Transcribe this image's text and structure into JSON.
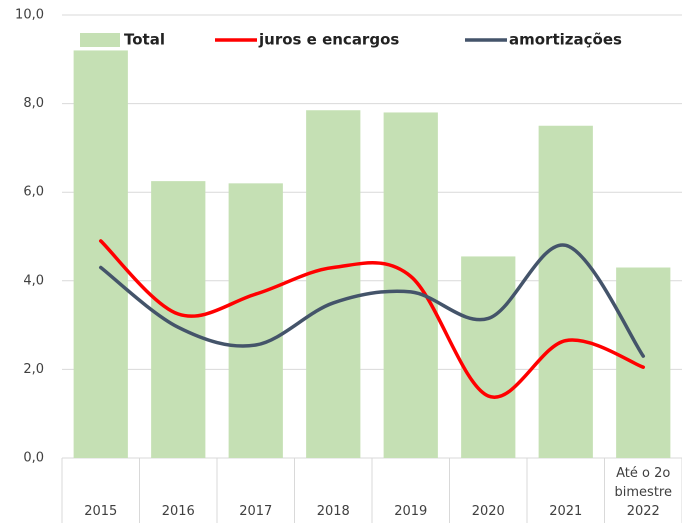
{
  "chart_data": {
    "type": "bar",
    "categories": [
      "2015",
      "2016",
      "2017",
      "2018",
      "2019",
      "2020",
      "2021",
      "Até o 2o bimestre 2022"
    ],
    "series": [
      {
        "name": "Total",
        "type": "bar",
        "color": "#c5e0b4",
        "values": [
          9.2,
          6.25,
          6.2,
          7.85,
          7.8,
          4.55,
          7.5,
          4.3
        ]
      },
      {
        "name": "juros e encargos",
        "type": "line",
        "color": "#ff0000",
        "values": [
          4.9,
          3.25,
          3.7,
          4.3,
          4.1,
          1.4,
          2.65,
          2.05
        ]
      },
      {
        "name": "amortizações",
        "type": "line",
        "color": "#44546a",
        "values": [
          4.3,
          2.95,
          2.55,
          3.5,
          3.75,
          3.15,
          4.8,
          2.3
        ]
      }
    ],
    "ylim": [
      0,
      10
    ],
    "yticks": [
      {
        "value": 0,
        "label": "0,0"
      },
      {
        "value": 2,
        "label": "2,0"
      },
      {
        "value": 4,
        "label": "4,0"
      },
      {
        "value": 6,
        "label": "6,0"
      },
      {
        "value": 8,
        "label": "8,0"
      },
      {
        "value": 10,
        "label": "10,0"
      }
    ],
    "grid": true
  }
}
